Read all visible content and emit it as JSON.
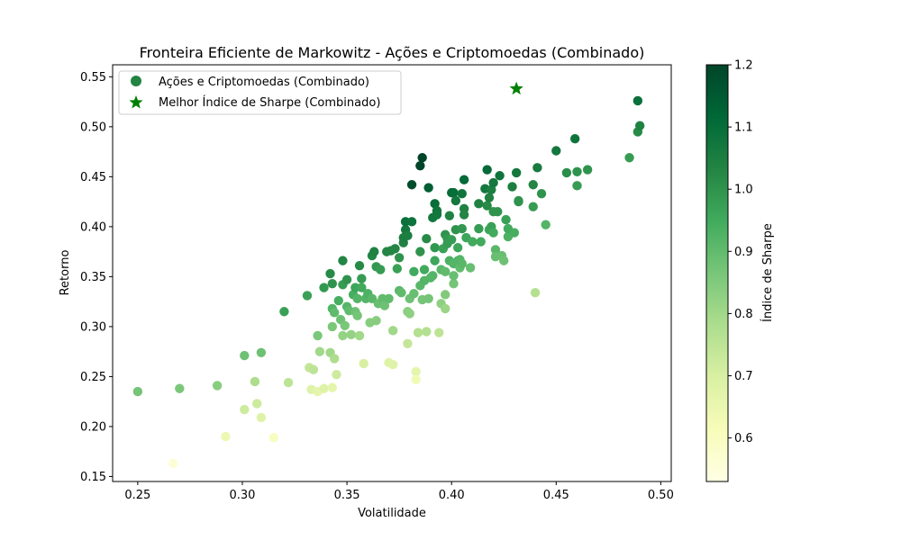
{
  "chart_data": {
    "type": "scatter",
    "title": "Fronteira Eficiente de Markowitz - Ações e Criptomoedas (Combinado)",
    "xlabel": "Volatilidade",
    "ylabel": "Retorno",
    "xlim": [
      0.238,
      0.505
    ],
    "ylim": [
      0.145,
      0.562
    ],
    "xticks": [
      "0.25",
      "0.30",
      "0.35",
      "0.40",
      "0.45",
      "0.50"
    ],
    "yticks": [
      "0.15",
      "0.20",
      "0.25",
      "0.30",
      "0.35",
      "0.40",
      "0.45",
      "0.50",
      "0.55"
    ],
    "grid": false,
    "legend_position": "top-left",
    "colormap": "YlGn",
    "colorbar": {
      "label": "Índice de Sharpe",
      "range": [
        0.53,
        1.2
      ],
      "ticks": [
        "0.6",
        "0.7",
        "0.8",
        "0.9",
        "1.0",
        "1.1",
        "1.2"
      ],
      "stops": [
        "#ffffe5",
        "#f7fcb9",
        "#d9f0a3",
        "#addd8e",
        "#78c679",
        "#41ab5d",
        "#238443",
        "#006837",
        "#004529"
      ]
    },
    "series": [
      {
        "name": "Ações e Criptomoedas (Combinado)",
        "marker": "circle",
        "legend_color": "#238443",
        "points": [
          [
            0.25,
            0.235,
            0.87
          ],
          [
            0.27,
            0.238,
            0.86
          ],
          [
            0.288,
            0.241,
            0.84
          ],
          [
            0.301,
            0.271,
            0.88
          ],
          [
            0.306,
            0.245,
            0.78
          ],
          [
            0.309,
            0.274,
            0.88
          ],
          [
            0.301,
            0.217,
            0.72
          ],
          [
            0.307,
            0.223,
            0.72
          ],
          [
            0.309,
            0.209,
            0.68
          ],
          [
            0.292,
            0.19,
            0.64
          ],
          [
            0.315,
            0.189,
            0.6
          ],
          [
            0.267,
            0.163,
            0.56
          ],
          [
            0.322,
            0.244,
            0.75
          ],
          [
            0.32,
            0.315,
            0.97
          ],
          [
            0.331,
            0.331,
            0.97
          ],
          [
            0.332,
            0.259,
            0.74
          ],
          [
            0.334,
            0.257,
            0.75
          ],
          [
            0.333,
            0.237,
            0.68
          ],
          [
            0.336,
            0.235,
            0.66
          ],
          [
            0.339,
            0.238,
            0.68
          ],
          [
            0.343,
            0.239,
            0.66
          ],
          [
            0.336,
            0.291,
            0.86
          ],
          [
            0.337,
            0.275,
            0.8
          ],
          [
            0.342,
            0.274,
            0.8
          ],
          [
            0.344,
            0.268,
            0.78
          ],
          [
            0.345,
            0.252,
            0.72
          ],
          [
            0.339,
            0.339,
            0.99
          ],
          [
            0.342,
            0.353,
            1.02
          ],
          [
            0.343,
            0.343,
            1.0
          ],
          [
            0.343,
            0.318,
            0.92
          ],
          [
            0.344,
            0.314,
            0.9
          ],
          [
            0.343,
            0.3,
            0.86
          ],
          [
            0.346,
            0.326,
            0.94
          ],
          [
            0.347,
            0.307,
            0.88
          ],
          [
            0.348,
            0.291,
            0.82
          ],
          [
            0.349,
            0.301,
            0.86
          ],
          [
            0.348,
            0.366,
            1.03
          ],
          [
            0.348,
            0.342,
            0.98
          ],
          [
            0.35,
            0.347,
            1.0
          ],
          [
            0.35,
            0.32,
            0.92
          ],
          [
            0.351,
            0.316,
            0.9
          ],
          [
            0.352,
            0.292,
            0.82
          ],
          [
            0.353,
            0.332,
            0.94
          ],
          [
            0.354,
            0.339,
            0.96
          ],
          [
            0.354,
            0.315,
            0.88
          ],
          [
            0.355,
            0.311,
            0.87
          ],
          [
            0.355,
            0.328,
            0.92
          ],
          [
            0.356,
            0.361,
            1.02
          ],
          [
            0.356,
            0.291,
            0.8
          ],
          [
            0.357,
            0.348,
            0.98
          ],
          [
            0.357,
            0.339,
            0.95
          ],
          [
            0.358,
            0.263,
            0.7
          ],
          [
            0.359,
            0.328,
            0.92
          ],
          [
            0.36,
            0.333,
            0.93
          ],
          [
            0.361,
            0.304,
            0.84
          ],
          [
            0.362,
            0.371,
            1.03
          ],
          [
            0.362,
            0.328,
            0.91
          ],
          [
            0.363,
            0.375,
            1.04
          ],
          [
            0.364,
            0.36,
            0.99
          ],
          [
            0.364,
            0.306,
            0.84
          ],
          [
            0.365,
            0.323,
            0.89
          ],
          [
            0.366,
            0.357,
            0.98
          ],
          [
            0.367,
            0.328,
            0.9
          ],
          [
            0.368,
            0.321,
            0.88
          ],
          [
            0.369,
            0.375,
            1.03
          ],
          [
            0.37,
            0.264,
            0.68
          ],
          [
            0.37,
            0.328,
            0.9
          ],
          [
            0.371,
            0.376,
            1.03
          ],
          [
            0.372,
            0.296,
            0.8
          ],
          [
            0.372,
            0.262,
            0.68
          ],
          [
            0.373,
            0.378,
            1.03
          ],
          [
            0.374,
            0.358,
            0.97
          ],
          [
            0.375,
            0.336,
            0.91
          ],
          [
            0.375,
            0.369,
            1.0
          ],
          [
            0.376,
            0.334,
            0.9
          ],
          [
            0.377,
            0.384,
            1.04
          ],
          [
            0.377,
            0.389,
            1.05
          ],
          [
            0.378,
            0.397,
            1.07
          ],
          [
            0.378,
            0.405,
            1.09
          ],
          [
            0.379,
            0.391,
            1.05
          ],
          [
            0.379,
            0.315,
            0.84
          ],
          [
            0.379,
            0.283,
            0.74
          ],
          [
            0.38,
            0.313,
            0.83
          ],
          [
            0.38,
            0.328,
            0.88
          ],
          [
            0.381,
            0.442,
            1.18
          ],
          [
            0.381,
            0.405,
            1.08
          ],
          [
            0.382,
            0.333,
            0.89
          ],
          [
            0.382,
            0.355,
            0.95
          ],
          [
            0.383,
            0.255,
            0.66
          ],
          [
            0.383,
            0.247,
            0.63
          ],
          [
            0.384,
            0.294,
            0.77
          ],
          [
            0.385,
            0.375,
            1.0
          ],
          [
            0.385,
            0.341,
            0.91
          ],
          [
            0.385,
            0.461,
            1.2
          ],
          [
            0.386,
            0.469,
            1.2
          ],
          [
            0.386,
            0.327,
            0.87
          ],
          [
            0.387,
            0.357,
            0.95
          ],
          [
            0.387,
            0.346,
            0.92
          ],
          [
            0.388,
            0.388,
            1.02
          ],
          [
            0.388,
            0.295,
            0.77
          ],
          [
            0.389,
            0.439,
            1.14
          ],
          [
            0.389,
            0.328,
            0.87
          ],
          [
            0.39,
            0.349,
            0.92
          ],
          [
            0.391,
            0.409,
            1.07
          ],
          [
            0.391,
            0.351,
            0.92
          ],
          [
            0.392,
            0.379,
            0.99
          ],
          [
            0.392,
            0.366,
            0.96
          ],
          [
            0.392,
            0.423,
            1.1
          ],
          [
            0.393,
            0.413,
            1.07
          ],
          [
            0.393,
            0.416,
            1.08
          ],
          [
            0.393,
            0.412,
            1.07
          ],
          [
            0.394,
            0.294,
            0.75
          ],
          [
            0.395,
            0.323,
            0.83
          ],
          [
            0.395,
            0.357,
            0.91
          ],
          [
            0.396,
            0.378,
            0.97
          ],
          [
            0.397,
            0.392,
            1.0
          ],
          [
            0.397,
            0.355,
            0.9
          ],
          [
            0.397,
            0.318,
            0.81
          ],
          [
            0.397,
            0.332,
            0.85
          ],
          [
            0.398,
            0.388,
            0.99
          ],
          [
            0.398,
            0.383,
            0.98
          ],
          [
            0.399,
            0.366,
            0.93
          ],
          [
            0.399,
            0.411,
            1.04
          ],
          [
            0.4,
            0.434,
            1.1
          ],
          [
            0.4,
            0.387,
            0.98
          ],
          [
            0.401,
            0.343,
            0.87
          ],
          [
            0.401,
            0.363,
            0.92
          ],
          [
            0.401,
            0.351,
            0.89
          ],
          [
            0.401,
            0.434,
            1.1
          ],
          [
            0.402,
            0.426,
            1.07
          ],
          [
            0.402,
            0.397,
            1.0
          ],
          [
            0.403,
            0.379,
            0.96
          ],
          [
            0.403,
            0.366,
            0.92
          ],
          [
            0.404,
            0.359,
            0.9
          ],
          [
            0.404,
            0.367,
            0.92
          ],
          [
            0.405,
            0.433,
            1.08
          ],
          [
            0.405,
            0.398,
            0.99
          ],
          [
            0.405,
            0.363,
            0.91
          ],
          [
            0.406,
            0.418,
            1.04
          ],
          [
            0.406,
            0.412,
            1.03
          ],
          [
            0.406,
            0.447,
            1.11
          ],
          [
            0.407,
            0.389,
            0.96
          ],
          [
            0.409,
            0.359,
            0.89
          ],
          [
            0.41,
            0.385,
            0.95
          ],
          [
            0.413,
            0.423,
            1.04
          ],
          [
            0.413,
            0.398,
            0.98
          ],
          [
            0.414,
            0.385,
            0.95
          ],
          [
            0.416,
            0.438,
            1.07
          ],
          [
            0.417,
            0.457,
            1.11
          ],
          [
            0.417,
            0.421,
            1.02
          ],
          [
            0.418,
            0.397,
            0.96
          ],
          [
            0.418,
            0.429,
            1.04
          ],
          [
            0.419,
            0.437,
            1.05
          ],
          [
            0.419,
            0.4,
            0.97
          ],
          [
            0.42,
            0.444,
            1.07
          ],
          [
            0.42,
            0.415,
            1.0
          ],
          [
            0.42,
            0.394,
            0.95
          ],
          [
            0.421,
            0.377,
            0.91
          ],
          [
            0.421,
            0.37,
            0.89
          ],
          [
            0.422,
            0.415,
            1.0
          ],
          [
            0.423,
            0.451,
            1.08
          ],
          [
            0.424,
            0.371,
            0.89
          ],
          [
            0.425,
            0.366,
            0.88
          ],
          [
            0.426,
            0.407,
            0.97
          ],
          [
            0.427,
            0.39,
            0.93
          ],
          [
            0.427,
            0.398,
            0.95
          ],
          [
            0.429,
            0.44,
            1.05
          ],
          [
            0.43,
            0.394,
            0.94
          ],
          [
            0.431,
            0.454,
            1.07
          ],
          [
            0.432,
            0.426,
            1.0
          ],
          [
            0.432,
            0.425,
            1.0
          ],
          [
            0.439,
            0.442,
            1.03
          ],
          [
            0.439,
            0.42,
            0.98
          ],
          [
            0.44,
            0.334,
            0.77
          ],
          [
            0.441,
            0.459,
            1.06
          ],
          [
            0.443,
            0.433,
            1.0
          ],
          [
            0.445,
            0.402,
            0.92
          ],
          [
            0.45,
            0.476,
            1.07
          ],
          [
            0.455,
            0.454,
            1.01
          ],
          [
            0.459,
            0.488,
            1.08
          ],
          [
            0.46,
            0.455,
            1.0
          ],
          [
            0.46,
            0.441,
            0.98
          ],
          [
            0.465,
            0.457,
            1.0
          ],
          [
            0.485,
            0.469,
            0.98
          ],
          [
            0.489,
            0.526,
            1.09
          ],
          [
            0.489,
            0.495,
            1.02
          ],
          [
            0.49,
            0.501,
            1.04
          ]
        ]
      },
      {
        "name": "Melhor Índice de Sharpe (Combinado)",
        "marker": "star",
        "color": "#008000",
        "points": [
          [
            0.431,
            0.538
          ]
        ]
      }
    ]
  }
}
